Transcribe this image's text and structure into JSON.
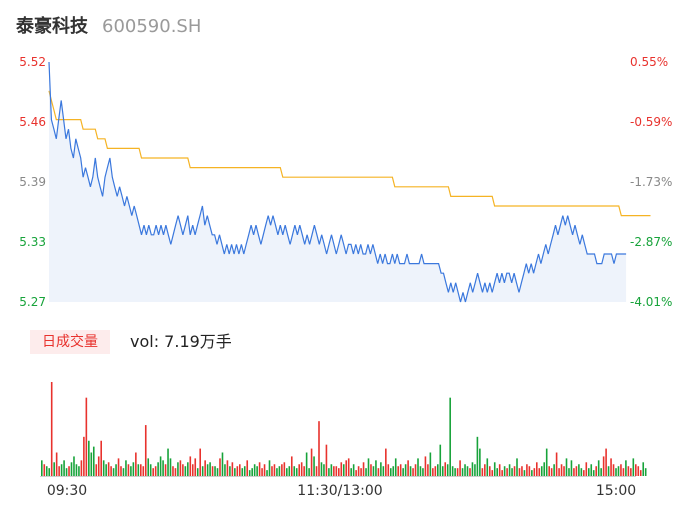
{
  "header": {
    "name": "泰豪科技",
    "code": "600590.SH"
  },
  "volume": {
    "tag": "日成交量",
    "label": "vol: 7.19万手"
  },
  "colors": {
    "up": "#e8322d",
    "down": "#17a33a",
    "flat": "#888888",
    "price": "#3b78dd",
    "avg": "#f5b324",
    "area": "#eef3fb"
  },
  "chart_data": [
    {
      "type": "line",
      "price_ticks": [
        "5.52",
        "5.46",
        "5.39",
        "5.33",
        "5.27"
      ],
      "pct_ticks": [
        "0.55%",
        "-0.59%",
        "-1.73%",
        "-2.87%",
        "-4.01%"
      ],
      "tick_colors": [
        "up",
        "up",
        "flat",
        "down",
        "down"
      ],
      "ylim": [
        5.27,
        5.52
      ],
      "x_count": 240,
      "series": [
        {
          "key": "price",
          "values": [
            5.52,
            5.46,
            5.45,
            5.44,
            5.46,
            5.48,
            5.46,
            5.44,
            5.45,
            5.43,
            5.42,
            5.44,
            5.43,
            5.42,
            5.4,
            5.41,
            5.4,
            5.39,
            5.4,
            5.42,
            5.4,
            5.39,
            5.38,
            5.4,
            5.41,
            5.42,
            5.4,
            5.39,
            5.38,
            5.39,
            5.38,
            5.37,
            5.38,
            5.37,
            5.36,
            5.37,
            5.36,
            5.35,
            5.34,
            5.35,
            5.34,
            5.35,
            5.34,
            5.34,
            5.35,
            5.34,
            5.35,
            5.34,
            5.35,
            5.34,
            5.33,
            5.34,
            5.35,
            5.36,
            5.35,
            5.34,
            5.35,
            5.36,
            5.34,
            5.35,
            5.34,
            5.35,
            5.36,
            5.37,
            5.35,
            5.36,
            5.35,
            5.34,
            5.34,
            5.33,
            5.34,
            5.33,
            5.32,
            5.33,
            5.32,
            5.33,
            5.32,
            5.33,
            5.32,
            5.33,
            5.32,
            5.33,
            5.34,
            5.35,
            5.34,
            5.35,
            5.34,
            5.33,
            5.34,
            5.35,
            5.36,
            5.35,
            5.36,
            5.35,
            5.34,
            5.35,
            5.34,
            5.35,
            5.34,
            5.33,
            5.34,
            5.35,
            5.34,
            5.35,
            5.34,
            5.33,
            5.34,
            5.33,
            5.34,
            5.35,
            5.34,
            5.33,
            5.34,
            5.33,
            5.32,
            5.33,
            5.34,
            5.33,
            5.32,
            5.33,
            5.34,
            5.33,
            5.32,
            5.33,
            5.33,
            5.32,
            5.33,
            5.32,
            5.33,
            5.32,
            5.32,
            5.33,
            5.32,
            5.33,
            5.32,
            5.31,
            5.32,
            5.31,
            5.32,
            5.31,
            5.31,
            5.32,
            5.31,
            5.32,
            5.31,
            5.31,
            5.31,
            5.32,
            5.31,
            5.31,
            5.31,
            5.31,
            5.31,
            5.32,
            5.31,
            5.31,
            5.31,
            5.31,
            5.31,
            5.31,
            5.31,
            5.3,
            5.3,
            5.29,
            5.28,
            5.29,
            5.28,
            5.29,
            5.28,
            5.27,
            5.28,
            5.27,
            5.28,
            5.29,
            5.28,
            5.29,
            5.3,
            5.29,
            5.28,
            5.29,
            5.28,
            5.29,
            5.28,
            5.29,
            5.3,
            5.29,
            5.3,
            5.29,
            5.3,
            5.3,
            5.29,
            5.3,
            5.29,
            5.28,
            5.29,
            5.3,
            5.31,
            5.3,
            5.31,
            5.3,
            5.31,
            5.32,
            5.31,
            5.32,
            5.33,
            5.32,
            5.33,
            5.34,
            5.35,
            5.34,
            5.35,
            5.36,
            5.35,
            5.36,
            5.35,
            5.34,
            5.35,
            5.34,
            5.33,
            5.34,
            5.33,
            5.32,
            5.32,
            5.32,
            5.32,
            5.31,
            5.31,
            5.31,
            5.32,
            5.32,
            5.32,
            5.32,
            5.31,
            5.32,
            5.32,
            5.32,
            5.32,
            5.32
          ]
        },
        {
          "key": "avg",
          "values": [
            5.49,
            5.48,
            5.47,
            5.46,
            5.46,
            5.46,
            5.46,
            5.46,
            5.46,
            5.46,
            5.46,
            5.46,
            5.46,
            5.46,
            5.45,
            5.45,
            5.45,
            5.45,
            5.45,
            5.45,
            5.44,
            5.44,
            5.44,
            5.44,
            5.43,
            5.43,
            5.43,
            5.43,
            5.43,
            5.43,
            5.43,
            5.43,
            5.43,
            5.43,
            5.43,
            5.43,
            5.43,
            5.43,
            5.42,
            5.42,
            5.42,
            5.42,
            5.42,
            5.42,
            5.42,
            5.42,
            5.42,
            5.42,
            5.42,
            5.42,
            5.42,
            5.42,
            5.42,
            5.42,
            5.42,
            5.42,
            5.42,
            5.42,
            5.41,
            5.41,
            5.41,
            5.41,
            5.41,
            5.41,
            5.41,
            5.41,
            5.41,
            5.41,
            5.41,
            5.41,
            5.41,
            5.41,
            5.41,
            5.41,
            5.41,
            5.41,
            5.41,
            5.41,
            5.41,
            5.41,
            5.41,
            5.41,
            5.41,
            5.41,
            5.41,
            5.41,
            5.41,
            5.41,
            5.41,
            5.41,
            5.41,
            5.41,
            5.41,
            5.41,
            5.41,
            5.41,
            5.4,
            5.4,
            5.4,
            5.4,
            5.4,
            5.4,
            5.4,
            5.4,
            5.4,
            5.4,
            5.4,
            5.4,
            5.4,
            5.4,
            5.4,
            5.4,
            5.4,
            5.4,
            5.4,
            5.4,
            5.4,
            5.4,
            5.4,
            5.4,
            5.4,
            5.4,
            5.4,
            5.4,
            5.4,
            5.4,
            5.4,
            5.4,
            5.4,
            5.4,
            5.4,
            5.4,
            5.4,
            5.4,
            5.4,
            5.4,
            5.4,
            5.4,
            5.4,
            5.4,
            5.4,
            5.4,
            5.39,
            5.39,
            5.39,
            5.39,
            5.39,
            5.39,
            5.39,
            5.39,
            5.39,
            5.39,
            5.39,
            5.39,
            5.39,
            5.39,
            5.39,
            5.39,
            5.39,
            5.39,
            5.39,
            5.39,
            5.39,
            5.39,
            5.39,
            5.38,
            5.38,
            5.38,
            5.38,
            5.38,
            5.38,
            5.38,
            5.38,
            5.38,
            5.38,
            5.38,
            5.38,
            5.38,
            5.38,
            5.38,
            5.38,
            5.38,
            5.38,
            5.37,
            5.37,
            5.37,
            5.37,
            5.37,
            5.37,
            5.37,
            5.37,
            5.37,
            5.37,
            5.37,
            5.37,
            5.37,
            5.37,
            5.37,
            5.37,
            5.37,
            5.37,
            5.37,
            5.37,
            5.37,
            5.37,
            5.37,
            5.37,
            5.37,
            5.37,
            5.37,
            5.37,
            5.37,
            5.37,
            5.37,
            5.37,
            5.37,
            5.37,
            5.37,
            5.37,
            5.37,
            5.37,
            5.37,
            5.37,
            5.37,
            5.37,
            5.37,
            5.37,
            5.37,
            5.37,
            5.37,
            5.37,
            5.37,
            5.37,
            5.37,
            5.37,
            5.36,
            5.36,
            5.36,
            5.36,
            5.36,
            5.36,
            5.36,
            5.36,
            5.36,
            5.36,
            5.36,
            5.36,
            5.36
          ]
        }
      ]
    },
    {
      "type": "bar",
      "x_labels": [
        "09:30",
        "11:30/13:00",
        "15:00"
      ],
      "x_count": 240,
      "values": [
        8,
        6,
        5,
        4,
        48,
        7,
        12,
        5,
        6,
        8,
        4,
        5,
        7,
        10,
        6,
        5,
        8,
        20,
        40,
        18,
        12,
        15,
        6,
        10,
        18,
        8,
        6,
        7,
        5,
        4,
        6,
        9,
        5,
        4,
        8,
        6,
        5,
        7,
        12,
        6,
        6,
        5,
        26,
        9,
        6,
        4,
        5,
        7,
        10,
        8,
        6,
        14,
        9,
        5,
        4,
        7,
        8,
        6,
        5,
        7,
        10,
        6,
        9,
        4,
        14,
        5,
        8,
        6,
        7,
        5,
        5,
        4,
        9,
        12,
        6,
        8,
        5,
        7,
        4,
        5,
        6,
        4,
        5,
        8,
        3,
        4,
        6,
        5,
        7,
        4,
        6,
        3,
        8,
        5,
        6,
        4,
        5,
        6,
        7,
        4,
        5,
        10,
        5,
        4,
        6,
        7,
        5,
        12,
        4,
        14,
        10,
        5,
        28,
        7,
        6,
        16,
        4,
        6,
        5,
        5,
        4,
        7,
        6,
        8,
        9,
        4,
        6,
        3,
        5,
        4,
        7,
        4,
        9,
        6,
        5,
        8,
        4,
        7,
        5,
        14,
        6,
        4,
        5,
        9,
        5,
        6,
        4,
        6,
        8,
        5,
        4,
        6,
        9,
        5,
        4,
        10,
        6,
        12,
        4,
        5,
        6,
        16,
        5,
        7,
        6,
        40,
        5,
        4,
        4,
        8,
        4,
        6,
        5,
        4,
        7,
        6,
        20,
        14,
        4,
        6,
        9,
        5,
        3,
        7,
        4,
        6,
        3,
        5,
        4,
        6,
        4,
        5,
        9,
        4,
        5,
        3,
        6,
        5,
        3,
        4,
        7,
        4,
        5,
        7,
        14,
        5,
        4,
        6,
        12,
        4,
        6,
        5,
        9,
        4,
        8,
        4,
        5,
        6,
        4,
        3,
        7,
        4,
        6,
        3,
        5,
        8,
        4,
        10,
        14,
        5,
        9,
        6,
        4,
        5,
        6,
        4,
        8,
        5,
        4,
        9,
        6,
        5,
        3,
        7,
        4
      ],
      "directions": "dudduduudddudddduuuddduuudduudduuddudduduuudduudddudduuduudduuudududdudduddududuuddudddduuudduudduuddudduuudduduuddudduuuuduudduuuudduddudduuddduudduduuddduuduudddudddduudddudddduuduudduududduduuduuduuuddduuduuuuddduudduudddudduuduudduuduuduuu"
    }
  ]
}
